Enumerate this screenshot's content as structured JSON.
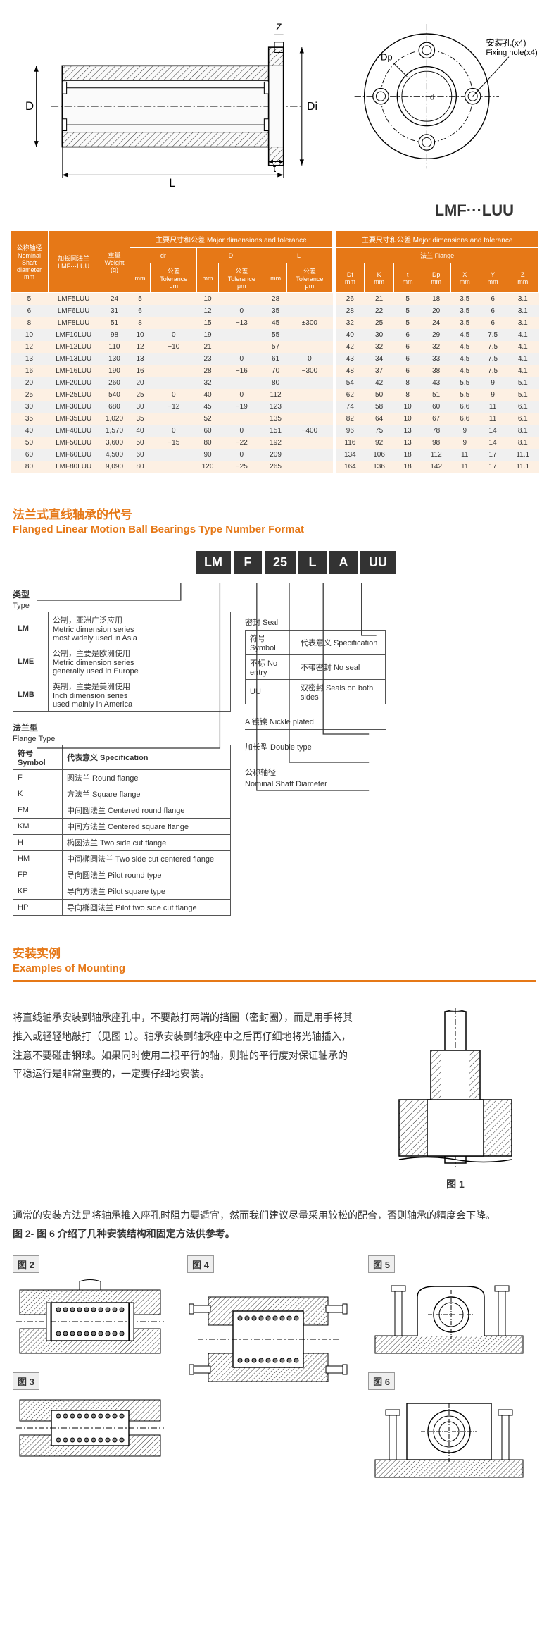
{
  "top_diagram": {
    "labels": {
      "D": "D",
      "Di": "Di",
      "L": "L",
      "t": "t",
      "Z": "Z",
      "Dp": "Dp",
      "d": "d",
      "fixing_cn": "安装孔(x4)",
      "fixing_en": "Fixing hole(x4)"
    },
    "colors": {
      "stroke": "#1a1a1a",
      "hatch": "#333333",
      "fill_light": "#ffffff"
    }
  },
  "product_code": "LMF···LUU",
  "spec_table": {
    "header": {
      "nominal": "公称轴径\\nNominal\\nShaft\\ndiameter\\nmm",
      "model": "加长圆法兰\\nLMF···LUU",
      "weight": "重量\\nWeight\\n(g)",
      "group_major": "主要尺寸和公差 Major dimensions and tolerance",
      "group_flange": "主要尺寸和公差 Major dimensions and tolerance",
      "sub_flange": "法兰 Flange",
      "cols": [
        "dr",
        "公差\\nTolerance\\nμm",
        "D",
        "公差\\nTolerance\\nμm",
        "L",
        "公差\\nTolerance\\nμm",
        "Df\\nmm",
        "K\\nmm",
        "t\\nmm",
        "Dp\\nmm",
        "X\\nmm",
        "Y\\nmm",
        "Z\\nmm"
      ]
    },
    "rows": [
      [
        "5",
        "LMF5LUU",
        "24",
        "5",
        "",
        "10",
        "",
        "28",
        "",
        "26",
        "21",
        "5",
        "18",
        "3.5",
        "6",
        "3.1"
      ],
      [
        "6",
        "LMF6LUU",
        "31",
        "6",
        "",
        "12",
        "0",
        "35",
        "",
        "28",
        "22",
        "5",
        "20",
        "3.5",
        "6",
        "3.1"
      ],
      [
        "8",
        "LMF8LUU",
        "51",
        "8",
        "",
        "15",
        "−13",
        "45",
        "±300",
        "32",
        "25",
        "5",
        "24",
        "3.5",
        "6",
        "3.1"
      ],
      [
        "10",
        "LMF10LUU",
        "98",
        "10",
        "0",
        "19",
        "",
        "55",
        "",
        "40",
        "30",
        "6",
        "29",
        "4.5",
        "7.5",
        "4.1"
      ],
      [
        "12",
        "LMF12LUU",
        "110",
        "12",
        "−10",
        "21",
        "",
        "57",
        "",
        "42",
        "32",
        "6",
        "32",
        "4.5",
        "7.5",
        "4.1"
      ],
      [
        "13",
        "LMF13LUU",
        "130",
        "13",
        "",
        "23",
        "0",
        "61",
        "0",
        "43",
        "34",
        "6",
        "33",
        "4.5",
        "7.5",
        "4.1"
      ],
      [
        "16",
        "LMF16LUU",
        "190",
        "16",
        "",
        "28",
        "−16",
        "70",
        "−300",
        "48",
        "37",
        "6",
        "38",
        "4.5",
        "7.5",
        "4.1"
      ],
      [
        "20",
        "LMF20LUU",
        "260",
        "20",
        "",
        "32",
        "",
        "80",
        "",
        "54",
        "42",
        "8",
        "43",
        "5.5",
        "9",
        "5.1"
      ],
      [
        "25",
        "LMF25LUU",
        "540",
        "25",
        "0",
        "40",
        "0",
        "112",
        "",
        "62",
        "50",
        "8",
        "51",
        "5.5",
        "9",
        "5.1"
      ],
      [
        "30",
        "LMF30LUU",
        "680",
        "30",
        "−12",
        "45",
        "−19",
        "123",
        "",
        "74",
        "58",
        "10",
        "60",
        "6.6",
        "11",
        "6.1"
      ],
      [
        "35",
        "LMF35LUU",
        "1,020",
        "35",
        "",
        "52",
        "",
        "135",
        "",
        "82",
        "64",
        "10",
        "67",
        "6.6",
        "11",
        "6.1"
      ],
      [
        "40",
        "LMF40LUU",
        "1,570",
        "40",
        "0",
        "60",
        "0",
        "151",
        "−400",
        "96",
        "75",
        "13",
        "78",
        "9",
        "14",
        "8.1"
      ],
      [
        "50",
        "LMF50LUU",
        "3,600",
        "50",
        "−15",
        "80",
        "−22",
        "192",
        "",
        "116",
        "92",
        "13",
        "98",
        "9",
        "14",
        "8.1"
      ],
      [
        "60",
        "LMF60LUU",
        "4,500",
        "60",
        "",
        "90",
        "0",
        "209",
        "",
        "134",
        "106",
        "18",
        "112",
        "11",
        "17",
        "11.1"
      ],
      [
        "80",
        "LMF80LUU",
        "9,090",
        "80",
        "",
        "120",
        "−25",
        "265",
        "",
        "164",
        "136",
        "18",
        "142",
        "11",
        "17",
        "11.1"
      ]
    ]
  },
  "tnf": {
    "title_cn": "法兰式直线轴承的代号",
    "title_en": "Flanged Linear Motion Ball Bearings Type Number Format",
    "boxes": [
      "LM",
      "F",
      "25",
      "L",
      "A",
      "UU"
    ],
    "type_label_cn": "类型",
    "type_label_en": "Type",
    "type_rows": [
      [
        "LM",
        "公制，亚洲广泛应用\\nMetric dimension series\\nmost widely used in Asia"
      ],
      [
        "LME",
        "公制，主要是欧洲使用\\nMetric dimension series\\ngenerally used in Europe"
      ],
      [
        "LMB",
        "英制，主要是美洲使用\\nInch dimension series\\nused mainly in America"
      ]
    ],
    "flange_label_cn": "法兰型",
    "flange_label_en": "Flange Type",
    "flange_hdr": [
      "符号 Symbol",
      "代表意义 Specification"
    ],
    "flange_rows": [
      [
        "F",
        "圆法兰 Round flange"
      ],
      [
        "K",
        "方法兰 Square flange"
      ],
      [
        "FM",
        "中间圆法兰 Centered round flange"
      ],
      [
        "KM",
        "中间方法兰 Centered square flange"
      ],
      [
        "H",
        "椭圆法兰 Two side cut flange"
      ],
      [
        "HM",
        "中间椭圆法兰 Two side cut centered flange"
      ],
      [
        "FP",
        "导向圆法兰 Pilot round type"
      ],
      [
        "KP",
        "导向方法兰 Pilot square type"
      ],
      [
        "HP",
        "导向椭圆法兰 Pilot two side cut flange"
      ]
    ],
    "seal_label": "密封 Seal",
    "seal_hdr": [
      "符号 Symbol",
      "代表意义 Specification"
    ],
    "seal_rows": [
      [
        "不标 No entry",
        "不带密封 No seal"
      ],
      [
        "UU",
        "双密封 Seals on both sides"
      ]
    ],
    "plated": "A 镀镍 Nickle plated",
    "long": "加长型 Double type",
    "shaft_cn": "公称轴径",
    "shaft_en": "Nominal Shaft Diameter"
  },
  "mounting": {
    "title_cn": "安装实例",
    "title_en": "Examples of Mounting",
    "para1": "将直线轴承安装到轴承座孔中，不要敲打两端的挡圈（密封圈），而是用手将其推入或轻轻地敲打（见图 1）。轴承安装到轴承座中之后再仔细地将光轴插入，注意不要碰击钢球。如果同时使用二根平行的轴，则轴的平行度对保证轴承的平稳运行是非常重要的，一定要仔细地安装。",
    "fig1": "图 1",
    "para2a": "通常的安装方法是将轴承推入座孔时阻力要适宜，然而我们建议尽量采用较松的配合，否则轴承的精度会下降。",
    "para2b": "图 2- 图 6 介绍了几种安装结构和固定方法供参考。",
    "figs": [
      "图 2",
      "图 3",
      "图 4",
      "图 5",
      "图 6"
    ]
  },
  "colors": {
    "accent": "#e67817",
    "header_bg": "#e67817",
    "row_alt1": "#fdf0e3",
    "row_alt2": "#f0f0f0"
  }
}
